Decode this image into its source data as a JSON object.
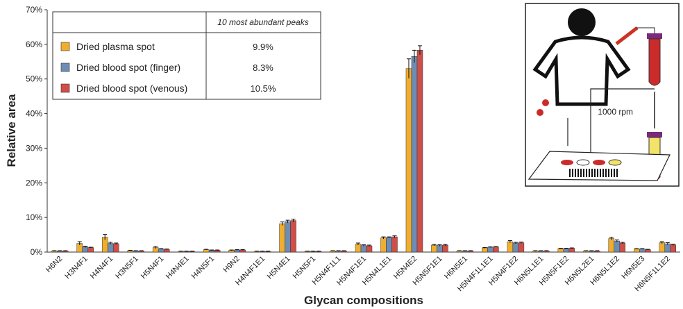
{
  "chart_data": {
    "type": "bar",
    "y_label": "Relative area",
    "x_label": "Glycan compositions",
    "categories": [
      "H6N2",
      "H3N4F1",
      "H4N4F1",
      "H3N5F1",
      "H5N4F1",
      "H4N4E1",
      "H4N5F1",
      "H9N2",
      "H4N4F1E1",
      "H5N4E1",
      "H5N5F1",
      "H5N4F1L1",
      "H5N4F1E1",
      "H5N4L1E1",
      "H5N4E2",
      "H5N5F1E1",
      "H6N5E1",
      "H5N4F1L1E1",
      "H5N4F1E2",
      "H6N5L1E1",
      "H5N5F1E2",
      "H6N5L2E1",
      "H6N5L1E2",
      "H6N5E3",
      "H6N5F1L1E2"
    ],
    "series": [
      {
        "name": "Dried plasma spot",
        "color": "#f0ae2e",
        "values": [
          0.3,
          2.5,
          4.3,
          0.4,
          1.3,
          0.2,
          0.7,
          0.5,
          0.2,
          8.2,
          0.2,
          0.3,
          2.3,
          4.1,
          53,
          2.0,
          0.3,
          1.2,
          3.0,
          0.3,
          1.0,
          0.3,
          3.9,
          0.9,
          2.7
        ],
        "errors": [
          0.1,
          0.5,
          0.8,
          0.1,
          0.3,
          0.1,
          0.1,
          0.1,
          0.1,
          0.5,
          0.1,
          0.1,
          0.3,
          0.3,
          2.8,
          0.2,
          0.1,
          0.1,
          0.3,
          0.1,
          0.1,
          0.1,
          0.4,
          0.1,
          0.3
        ]
      },
      {
        "name": "Dried blood spot (finger)",
        "color": "#6e8db5",
        "values": [
          0.3,
          1.5,
          2.5,
          0.3,
          0.9,
          0.2,
          0.5,
          0.6,
          0.2,
          8.8,
          0.2,
          0.3,
          1.9,
          4.2,
          56.5,
          1.9,
          0.3,
          1.4,
          2.6,
          0.3,
          1.0,
          0.3,
          3.2,
          0.9,
          2.4
        ],
        "errors": [
          0.1,
          0.2,
          0.3,
          0.1,
          0.1,
          0.1,
          0.1,
          0.1,
          0.1,
          0.4,
          0.1,
          0.1,
          0.2,
          0.2,
          1.8,
          0.2,
          0.1,
          0.1,
          0.2,
          0.1,
          0.1,
          0.1,
          0.3,
          0.1,
          0.3
        ]
      },
      {
        "name": "Dried blood spot (venous)",
        "color": "#cf4f48",
        "values": [
          0.3,
          1.3,
          2.4,
          0.3,
          0.8,
          0.2,
          0.5,
          0.6,
          0.2,
          9.1,
          0.2,
          0.3,
          1.8,
          4.4,
          58.3,
          2.0,
          0.3,
          1.5,
          2.7,
          0.3,
          1.1,
          0.3,
          2.6,
          0.7,
          2.1
        ],
        "errors": [
          0.1,
          0.1,
          0.2,
          0.1,
          0.1,
          0.1,
          0.1,
          0.1,
          0.1,
          0.4,
          0.1,
          0.1,
          0.2,
          0.3,
          1.3,
          0.2,
          0.1,
          0.1,
          0.2,
          0.1,
          0.1,
          0.1,
          0.2,
          0.1,
          0.2
        ]
      }
    ],
    "legend_header": "10 most abundant peaks",
    "legend_values": [
      "9.9%",
      "8.3%",
      "10.5%"
    ],
    "inset_label": "1000 rpm",
    "ylim": [
      0,
      70
    ],
    "yticks": [
      {
        "value": 0,
        "label": "0%"
      },
      {
        "value": 10,
        "label": "10%"
      },
      {
        "value": 20,
        "label": "20%"
      },
      {
        "value": 30,
        "label": "30%"
      },
      {
        "value": 40,
        "label": "40%"
      },
      {
        "value": 50,
        "label": "50%"
      },
      {
        "value": 60,
        "label": "60%"
      },
      {
        "value": 70,
        "label": "70%"
      }
    ]
  }
}
